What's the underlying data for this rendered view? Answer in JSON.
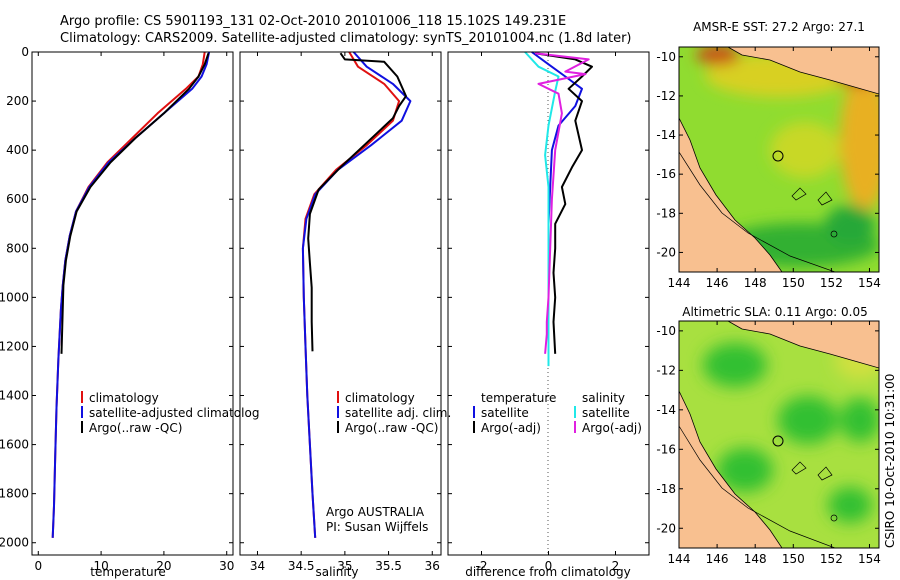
{
  "header": {
    "title_line1": "Argo profile: CS 5901193_131 02-Oct-2010 20101006_118 15.102S 149.231E",
    "title_line2": "Climatology: CARS2009. Satellite-adjusted climatology: synTS_20101004.nc (1.8d later)"
  },
  "side_label": "CSIRO 10-Oct-2010 10:31:00",
  "colors": {
    "red": "#e01010",
    "blue": "#1010e0",
    "black": "#000000",
    "cyan": "#20e8e8",
    "magenta": "#e020e0",
    "land": "#f8c090",
    "sst_warm": "#f0c020",
    "sst_hot": "#c04010"
  },
  "chart_data": [
    {
      "id": "temperature",
      "type": "line",
      "xlabel": "temperature",
      "xlim": [
        -1,
        31
      ],
      "ylim": [
        2050,
        0
      ],
      "xticks": [
        0,
        10,
        20,
        30
      ],
      "xtick_labels": [
        "0",
        "10",
        "20",
        "30"
      ],
      "yticks": [
        0,
        200,
        400,
        600,
        800,
        1000,
        1200,
        1400,
        1600,
        1800,
        2000
      ],
      "ytick_labels": [
        "0",
        "200",
        "400",
        "600",
        "800",
        "1000",
        "1200",
        "1400",
        "1600",
        "1800",
        "2000"
      ],
      "legend": [
        "climatology",
        "satellite-adjusted climatolog",
        "Argo(..raw -QC)"
      ],
      "legend_position": "lower-left",
      "series": [
        {
          "name": "climatology",
          "color": "#e01010",
          "x": [
            26.5,
            26.2,
            25.5,
            23.5,
            19.0,
            15.0,
            11.0,
            8.0,
            6.0,
            5.0,
            4.3,
            3.9,
            3.6,
            3.2,
            2.9,
            2.7,
            2.5,
            2.3
          ],
          "y": [
            0,
            50,
            100,
            150,
            250,
            350,
            450,
            550,
            650,
            750,
            850,
            950,
            1050,
            1250,
            1450,
            1650,
            1850,
            1980
          ]
        },
        {
          "name": "satellite-adjusted climatology",
          "color": "#1010e0",
          "x": [
            27.2,
            26.8,
            26.0,
            24.5,
            20.0,
            15.5,
            11.2,
            8.1,
            6.0,
            5.0,
            4.3,
            3.9,
            3.6,
            3.2,
            2.9,
            2.7,
            2.5,
            2.3
          ],
          "y": [
            0,
            50,
            100,
            150,
            250,
            350,
            450,
            550,
            650,
            750,
            850,
            950,
            1050,
            1250,
            1450,
            1650,
            1850,
            1980
          ]
        },
        {
          "name": "Argo(..raw -QC)",
          "color": "#000000",
          "x": [
            27.1,
            26.5,
            25.5,
            24.0,
            20.0,
            15.5,
            11.5,
            8.3,
            6.1,
            5.1,
            4.4,
            4.0,
            3.7
          ],
          "y": [
            5,
            50,
            100,
            150,
            250,
            350,
            450,
            550,
            650,
            750,
            850,
            950,
            1230
          ]
        }
      ]
    },
    {
      "id": "salinity",
      "type": "line",
      "xlabel": "salinity",
      "xlim": [
        33.8,
        36.1
      ],
      "ylim": [
        2050,
        0
      ],
      "xticks": [
        34,
        34.5,
        35,
        35.5,
        36
      ],
      "xtick_labels": [
        "34",
        "34.5",
        "35",
        "35.5",
        "36"
      ],
      "legend": [
        "climatology",
        "satellite adj. clim.",
        "Argo(..raw -QC)"
      ],
      "legend_position": "lower-right",
      "annotation": [
        "Argo AUSTRALIA",
        "PI: Susan Wijffels"
      ],
      "series": [
        {
          "name": "climatology",
          "color": "#e01010",
          "x": [
            35.05,
            35.15,
            35.45,
            35.62,
            35.55,
            35.25,
            34.9,
            34.65,
            34.55,
            34.52,
            34.53,
            34.55,
            34.57,
            34.6,
            34.63,
            34.66
          ],
          "y": [
            0,
            60,
            130,
            200,
            280,
            380,
            480,
            580,
            680,
            800,
            1000,
            1200,
            1400,
            1600,
            1800,
            1980
          ]
        },
        {
          "name": "satellite adj. clim.",
          "color": "#1010e0",
          "x": [
            35.1,
            35.25,
            35.55,
            35.75,
            35.65,
            35.3,
            34.92,
            34.66,
            34.56,
            34.52,
            34.53,
            34.55,
            34.57,
            34.6,
            34.63,
            34.66
          ],
          "y": [
            0,
            60,
            130,
            200,
            280,
            380,
            480,
            580,
            680,
            800,
            1000,
            1200,
            1400,
            1600,
            1800,
            1980
          ]
        },
        {
          "name": "Argo(..raw -QC)",
          "color": "#000000",
          "x": [
            34.95,
            35.0,
            35.45,
            35.6,
            35.7,
            35.62,
            35.55,
            35.25,
            34.95,
            34.7,
            34.6,
            34.58,
            34.6,
            34.62,
            34.62,
            34.63
          ],
          "y": [
            5,
            30,
            40,
            100,
            180,
            220,
            270,
            370,
            470,
            560,
            660,
            760,
            860,
            960,
            1100,
            1220
          ]
        }
      ]
    },
    {
      "id": "difference",
      "type": "line",
      "xlabel": "difference from climatology",
      "xlim": [
        -3,
        3
      ],
      "ylim": [
        2050,
        0
      ],
      "xticks": [
        -2,
        0,
        2
      ],
      "xtick_labels": [
        "-2",
        "0",
        "2"
      ],
      "legend_left_title": "temperature",
      "legend_right_title": "salinity",
      "legend": [
        "satellite",
        "Argo(-adj)",
        "satellite",
        "Argo(-adj)"
      ],
      "legend_position": "lower-center",
      "series": [
        {
          "name": "temperature satellite",
          "color": "#1010e0",
          "x": [
            -0.5,
            0.0,
            0.5,
            1.0,
            0.8,
            0.3,
            0.1,
            0.05,
            0.0,
            0.0,
            0.0,
            0.0
          ],
          "y": [
            0,
            50,
            100,
            150,
            220,
            300,
            400,
            550,
            700,
            900,
            1100,
            1200
          ]
        },
        {
          "name": "temperature Argo(-adj)",
          "color": "#000000",
          "x": [
            -0.4,
            0.8,
            1.3,
            1.0,
            0.6,
            1.0,
            0.8,
            1.0,
            0.7,
            0.4,
            0.5,
            0.2,
            0.2,
            0.2,
            0.15,
            0.2,
            0.15,
            0.2
          ],
          "y": [
            5,
            30,
            60,
            100,
            150,
            200,
            280,
            400,
            470,
            550,
            620,
            700,
            750,
            800,
            900,
            1000,
            1100,
            1230
          ]
        },
        {
          "name": "salinity satellite",
          "color": "#20e8e8",
          "x": [
            -0.7,
            -0.3,
            0.3,
            0.2,
            0.0,
            -0.1,
            0.0,
            0.0,
            0.0,
            0.0
          ],
          "y": [
            0,
            60,
            100,
            160,
            300,
            420,
            550,
            700,
            900,
            1280
          ]
        },
        {
          "name": "salinity Argo(-adj)",
          "color": "#e020e0",
          "x": [
            -0.4,
            1.2,
            0.5,
            1.1,
            -0.3,
            0.3,
            0.4,
            0.2,
            0.1,
            0.05,
            0.0,
            -0.05,
            -0.05,
            -0.1
          ],
          "y": [
            5,
            30,
            80,
            90,
            130,
            170,
            250,
            400,
            600,
            800,
            1000,
            1100,
            1150,
            1230
          ]
        }
      ]
    },
    {
      "id": "sst_map",
      "type": "heatmap",
      "title": "AMSR-E SST: 27.2 Argo: 27.1",
      "xlim": [
        144,
        154.5
      ],
      "ylim": [
        -21,
        -9.5
      ],
      "xticks": [
        144,
        146,
        148,
        150,
        152,
        154
      ],
      "xtick_labels": [
        "144",
        "146",
        "148",
        "150",
        "152",
        "154"
      ],
      "yticks": [
        -10,
        -12,
        -14,
        -16,
        -18,
        -20
      ],
      "ytick_labels": [
        "-10",
        "-12",
        "-14",
        "-16",
        "-18",
        "-20"
      ],
      "argo_position": {
        "lon": 149.23,
        "lat": -15.1
      }
    },
    {
      "id": "sla_map",
      "type": "heatmap",
      "title": "Altimetric SLA: 0.11 Argo: 0.05",
      "xlim": [
        144,
        154.5
      ],
      "ylim": [
        -21,
        -9.5
      ],
      "xticks": [
        144,
        146,
        148,
        150,
        152,
        154
      ],
      "xtick_labels": [
        "144",
        "146",
        "148",
        "150",
        "152",
        "154"
      ],
      "yticks": [
        -10,
        -12,
        -14,
        -16,
        -18,
        -20
      ],
      "ytick_labels": [
        "-10",
        "-12",
        "-14",
        "-16",
        "-18",
        "-20"
      ],
      "argo_position": {
        "lon": 149.23,
        "lat": -15.1
      }
    }
  ]
}
